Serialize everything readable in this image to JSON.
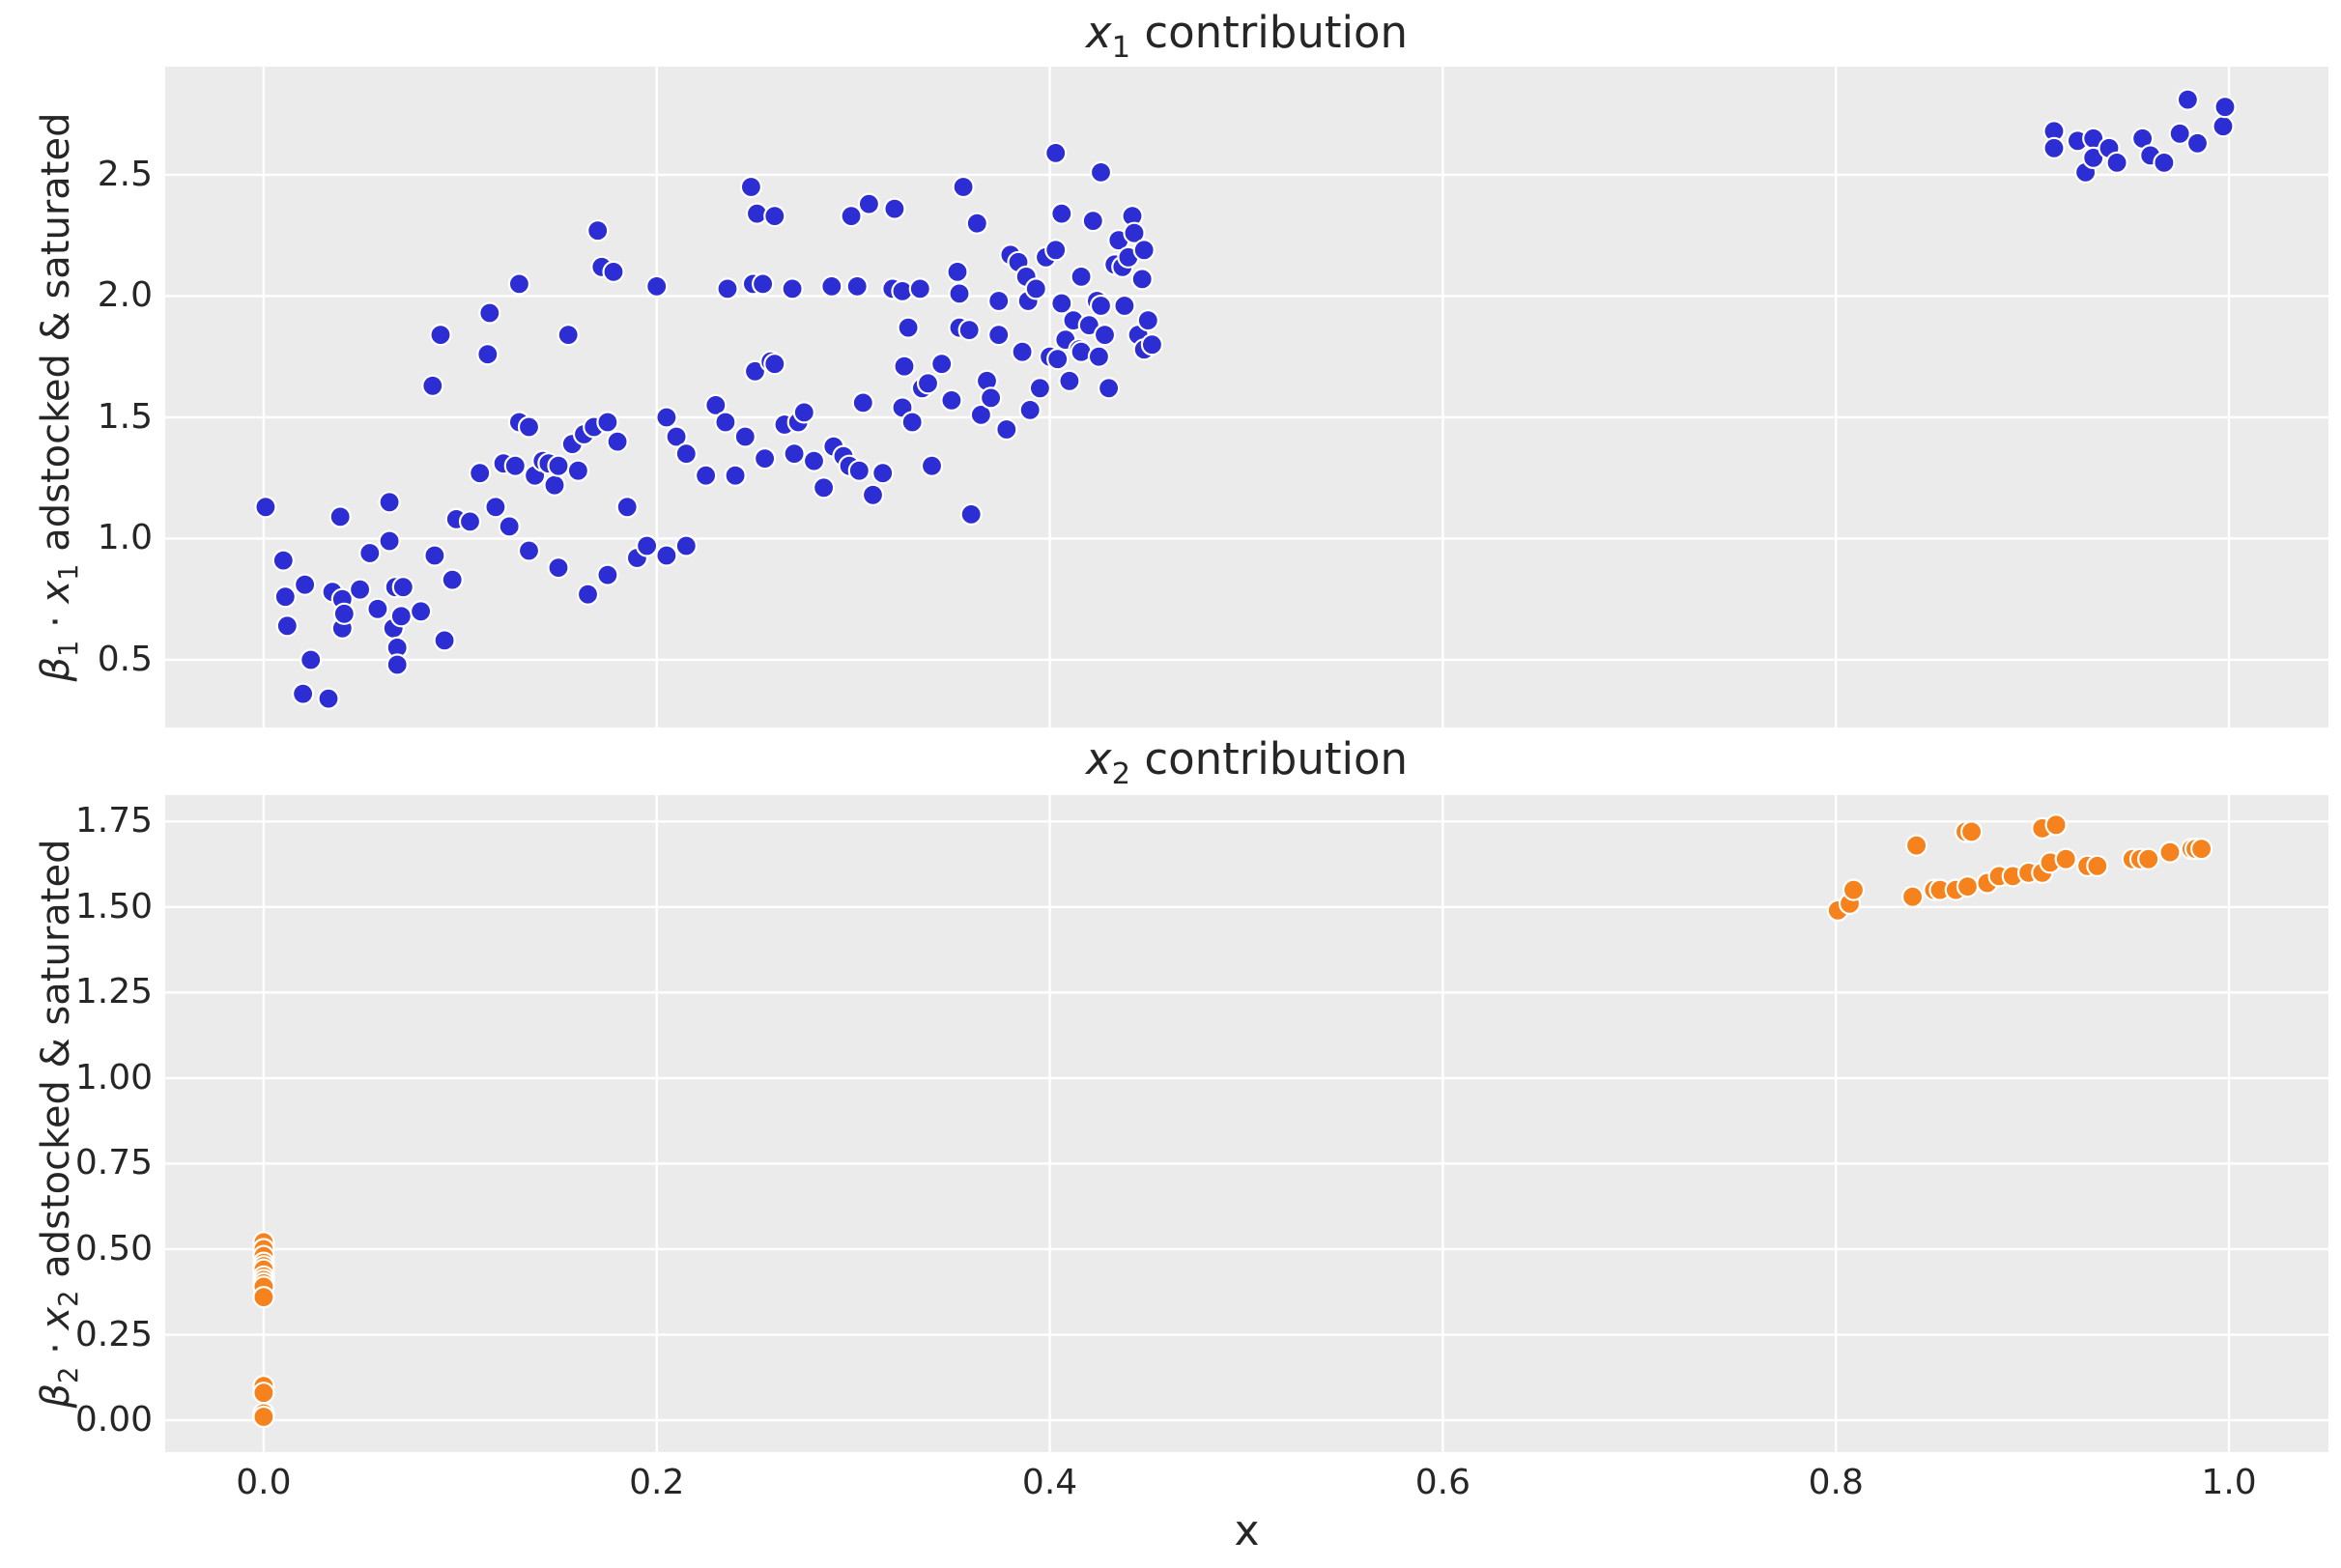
{
  "figure": {
    "background": "#ffffff",
    "panel_background": "#ebebeb",
    "grid_color": "#ffffff",
    "text_color": "#262626"
  },
  "chart_data": [
    {
      "type": "scatter",
      "title": "x1 contribution",
      "title_segments": [
        {
          "t": "var",
          "s": "x"
        },
        {
          "t": "sub",
          "s": "1"
        },
        {
          "t": "text",
          "s": " contribution"
        }
      ],
      "ylabel": "β1 · x1 adstocked & saturated",
      "ylabel_segments": [
        {
          "t": "var",
          "s": "β"
        },
        {
          "t": "sub",
          "s": "1"
        },
        {
          "t": "text",
          "s": " · "
        },
        {
          "t": "var",
          "s": "x"
        },
        {
          "t": "sub",
          "s": "1"
        },
        {
          "t": "text",
          "s": " adstocked & saturated"
        }
      ],
      "xlabel": "",
      "grid": true,
      "legend": null,
      "xlim": [
        -0.0501,
        1.0506
      ],
      "ylim": [
        0.221,
        2.946
      ],
      "xticks": {
        "values": [
          0.0,
          0.2,
          0.4,
          0.6,
          0.8,
          1.0
        ],
        "labels": []
      },
      "yticks": {
        "values": [
          0.5,
          1.0,
          1.5,
          2.0,
          2.5
        ],
        "labels": [
          "0.5",
          "1.0",
          "1.5",
          "2.0",
          "2.5"
        ]
      },
      "series": [
        {
          "name": "x1",
          "color": "#2d2dd4",
          "marker_edge": "#ffffff",
          "points": [
            [
              0.001,
              1.13
            ],
            [
              0.01,
              0.91
            ],
            [
              0.011,
              0.76
            ],
            [
              0.012,
              0.64
            ],
            [
              0.02,
              0.36
            ],
            [
              0.021,
              0.81
            ],
            [
              0.024,
              0.5
            ],
            [
              0.033,
              0.34
            ],
            [
              0.035,
              0.78
            ],
            [
              0.039,
              1.09
            ],
            [
              0.04,
              0.75
            ],
            [
              0.04,
              0.63
            ],
            [
              0.041,
              0.69
            ],
            [
              0.049,
              0.79
            ],
            [
              0.054,
              0.94
            ],
            [
              0.058,
              0.71
            ],
            [
              0.064,
              1.15
            ],
            [
              0.064,
              0.99
            ],
            [
              0.066,
              0.63
            ],
            [
              0.067,
              0.8
            ],
            [
              0.068,
              0.55
            ],
            [
              0.068,
              0.48
            ],
            [
              0.07,
              0.68
            ],
            [
              0.071,
              0.8
            ],
            [
              0.08,
              0.7
            ],
            [
              0.086,
              1.63
            ],
            [
              0.087,
              0.93
            ],
            [
              0.09,
              1.84
            ],
            [
              0.092,
              0.58
            ],
            [
              0.096,
              0.83
            ],
            [
              0.098,
              1.08
            ],
            [
              0.105,
              1.07
            ],
            [
              0.11,
              1.27
            ],
            [
              0.114,
              1.76
            ],
            [
              0.115,
              1.93
            ],
            [
              0.118,
              1.13
            ],
            [
              0.122,
              1.31
            ],
            [
              0.125,
              1.05
            ],
            [
              0.128,
              1.3
            ],
            [
              0.13,
              2.05
            ],
            [
              0.13,
              1.48
            ],
            [
              0.135,
              1.46
            ],
            [
              0.135,
              0.95
            ],
            [
              0.138,
              1.26
            ],
            [
              0.142,
              1.32
            ],
            [
              0.145,
              1.31
            ],
            [
              0.148,
              1.22
            ],
            [
              0.15,
              1.3
            ],
            [
              0.15,
              0.88
            ],
            [
              0.155,
              1.84
            ],
            [
              0.157,
              1.39
            ],
            [
              0.16,
              1.28
            ],
            [
              0.163,
              1.43
            ],
            [
              0.165,
              0.77
            ],
            [
              0.168,
              1.46
            ],
            [
              0.17,
              2.27
            ],
            [
              0.172,
              2.12
            ],
            [
              0.175,
              1.48
            ],
            [
              0.175,
              0.85
            ],
            [
              0.178,
              2.1
            ],
            [
              0.18,
              1.4
            ],
            [
              0.185,
              1.13
            ],
            [
              0.19,
              0.92
            ],
            [
              0.195,
              0.97
            ],
            [
              0.2,
              2.04
            ],
            [
              0.205,
              1.5
            ],
            [
              0.205,
              0.93
            ],
            [
              0.21,
              1.42
            ],
            [
              0.215,
              1.35
            ],
            [
              0.215,
              0.97
            ],
            [
              0.225,
              1.26
            ],
            [
              0.23,
              1.55
            ],
            [
              0.235,
              1.48
            ],
            [
              0.236,
              2.03
            ],
            [
              0.24,
              1.26
            ],
            [
              0.245,
              1.42
            ],
            [
              0.248,
              2.45
            ],
            [
              0.249,
              2.05
            ],
            [
              0.25,
              1.69
            ],
            [
              0.251,
              2.34
            ],
            [
              0.254,
              2.05
            ],
            [
              0.255,
              1.33
            ],
            [
              0.258,
              1.73
            ],
            [
              0.26,
              2.33
            ],
            [
              0.26,
              1.72
            ],
            [
              0.265,
              1.47
            ],
            [
              0.269,
              2.03
            ],
            [
              0.27,
              1.35
            ],
            [
              0.272,
              1.48
            ],
            [
              0.275,
              1.52
            ],
            [
              0.28,
              1.32
            ],
            [
              0.285,
              1.21
            ],
            [
              0.289,
              2.04
            ],
            [
              0.29,
              1.38
            ],
            [
              0.295,
              1.34
            ],
            [
              0.298,
              1.3
            ],
            [
              0.299,
              2.33
            ],
            [
              0.302,
              2.04
            ],
            [
              0.303,
              1.28
            ],
            [
              0.305,
              1.56
            ],
            [
              0.308,
              2.38
            ],
            [
              0.31,
              1.18
            ],
            [
              0.315,
              1.27
            ],
            [
              0.32,
              2.03
            ],
            [
              0.321,
              2.36
            ],
            [
              0.325,
              2.02
            ],
            [
              0.325,
              1.54
            ],
            [
              0.326,
              1.71
            ],
            [
              0.328,
              1.87
            ],
            [
              0.33,
              1.48
            ],
            [
              0.334,
              2.03
            ],
            [
              0.335,
              1.62
            ],
            [
              0.338,
              1.64
            ],
            [
              0.34,
              1.3
            ],
            [
              0.345,
              1.72
            ],
            [
              0.35,
              1.57
            ],
            [
              0.353,
              2.1
            ],
            [
              0.354,
              2.01
            ],
            [
              0.354,
              1.87
            ],
            [
              0.356,
              2.45
            ],
            [
              0.359,
              1.86
            ],
            [
              0.36,
              1.1
            ],
            [
              0.363,
              2.3
            ],
            [
              0.365,
              1.51
            ],
            [
              0.368,
              1.65
            ],
            [
              0.37,
              1.58
            ],
            [
              0.374,
              1.98
            ],
            [
              0.374,
              1.84
            ],
            [
              0.378,
              1.45
            ],
            [
              0.38,
              2.17
            ],
            [
              0.384,
              2.14
            ],
            [
              0.386,
              1.77
            ],
            [
              0.388,
              2.08
            ],
            [
              0.389,
              1.98
            ],
            [
              0.39,
              1.53
            ],
            [
              0.393,
              2.03
            ],
            [
              0.395,
              1.62
            ],
            [
              0.398,
              2.16
            ],
            [
              0.4,
              1.75
            ],
            [
              0.403,
              2.59
            ],
            [
              0.403,
              2.19
            ],
            [
              0.404,
              1.74
            ],
            [
              0.406,
              2.34
            ],
            [
              0.406,
              1.97
            ],
            [
              0.408,
              1.82
            ],
            [
              0.41,
              1.65
            ],
            [
              0.412,
              1.9
            ],
            [
              0.415,
              1.78
            ],
            [
              0.416,
              2.08
            ],
            [
              0.416,
              1.77
            ],
            [
              0.42,
              1.88
            ],
            [
              0.422,
              2.31
            ],
            [
              0.424,
              1.98
            ],
            [
              0.425,
              1.75
            ],
            [
              0.426,
              2.51
            ],
            [
              0.426,
              1.96
            ],
            [
              0.428,
              1.84
            ],
            [
              0.43,
              1.62
            ],
            [
              0.433,
              2.13
            ],
            [
              0.435,
              2.23
            ],
            [
              0.437,
              2.12
            ],
            [
              0.438,
              1.96
            ],
            [
              0.44,
              2.16
            ],
            [
              0.442,
              2.33
            ],
            [
              0.443,
              2.26
            ],
            [
              0.445,
              1.84
            ],
            [
              0.447,
              2.07
            ],
            [
              0.448,
              2.19
            ],
            [
              0.448,
              1.78
            ],
            [
              0.45,
              1.9
            ],
            [
              0.452,
              1.8
            ],
            [
              0.911,
              2.68
            ],
            [
              0.911,
              2.61
            ],
            [
              0.923,
              2.64
            ],
            [
              0.927,
              2.51
            ],
            [
              0.931,
              2.65
            ],
            [
              0.931,
              2.57
            ],
            [
              0.939,
              2.61
            ],
            [
              0.943,
              2.55
            ],
            [
              0.956,
              2.65
            ],
            [
              0.96,
              2.58
            ],
            [
              0.967,
              2.55
            ],
            [
              0.975,
              2.67
            ],
            [
              0.979,
              2.81
            ],
            [
              0.984,
              2.63
            ],
            [
              0.997,
              2.7
            ],
            [
              0.998,
              2.78
            ]
          ]
        }
      ]
    },
    {
      "type": "scatter",
      "title": "x2 contribution",
      "title_segments": [
        {
          "t": "var",
          "s": "x"
        },
        {
          "t": "sub",
          "s": "2"
        },
        {
          "t": "text",
          "s": " contribution"
        }
      ],
      "ylabel": "β2 · x2 adstocked & saturated",
      "ylabel_segments": [
        {
          "t": "var",
          "s": "β"
        },
        {
          "t": "sub",
          "s": "2"
        },
        {
          "t": "text",
          "s": " · "
        },
        {
          "t": "var",
          "s": "x"
        },
        {
          "t": "sub",
          "s": "2"
        },
        {
          "t": "text",
          "s": " adstocked & saturated"
        }
      ],
      "xlabel": "x",
      "grid": true,
      "legend": null,
      "xlim": [
        -0.0501,
        1.0506
      ],
      "ylim": [
        -0.093,
        1.827
      ],
      "xticks": {
        "values": [
          0.0,
          0.2,
          0.4,
          0.6,
          0.8,
          1.0
        ],
        "labels": [
          "0.0",
          "0.2",
          "0.4",
          "0.6",
          "0.8",
          "1.0"
        ]
      },
      "yticks": {
        "values": [
          0.0,
          0.25,
          0.5,
          0.75,
          1.0,
          1.25,
          1.5,
          1.75
        ],
        "labels": [
          "0.00",
          "0.25",
          "0.50",
          "0.75",
          "1.00",
          "1.25",
          "1.50",
          "1.75"
        ]
      },
      "series": [
        {
          "name": "x2",
          "color": "#f5821d",
          "marker_edge": "#ffffff",
          "points": [
            [
              0.0,
              0.52
            ],
            [
              0.0,
              0.5
            ],
            [
              0.0,
              0.48
            ],
            [
              0.0,
              0.46
            ],
            [
              0.0,
              0.45
            ],
            [
              0.0,
              0.44
            ],
            [
              0.0,
              0.42
            ],
            [
              0.0,
              0.41
            ],
            [
              0.0,
              0.4
            ],
            [
              0.0,
              0.39
            ],
            [
              0.0,
              0.36
            ],
            [
              0.0,
              0.1
            ],
            [
              0.0,
              0.08
            ],
            [
              0.0,
              0.02
            ],
            [
              0.0,
              0.01
            ],
            [
              0.801,
              1.49
            ],
            [
              0.807,
              1.51
            ],
            [
              0.809,
              1.55
            ],
            [
              0.839,
              1.53
            ],
            [
              0.841,
              1.68
            ],
            [
              0.85,
              1.55
            ],
            [
              0.853,
              1.55
            ],
            [
              0.861,
              1.55
            ],
            [
              0.866,
              1.72
            ],
            [
              0.869,
              1.72
            ],
            [
              0.867,
              1.56
            ],
            [
              0.877,
              1.57
            ],
            [
              0.883,
              1.59
            ],
            [
              0.89,
              1.59
            ],
            [
              0.898,
              1.6
            ],
            [
              0.905,
              1.73
            ],
            [
              0.912,
              1.74
            ],
            [
              0.905,
              1.6
            ],
            [
              0.909,
              1.63
            ],
            [
              0.917,
              1.64
            ],
            [
              0.928,
              1.62
            ],
            [
              0.933,
              1.62
            ],
            [
              0.951,
              1.64
            ],
            [
              0.955,
              1.64
            ],
            [
              0.959,
              1.64
            ],
            [
              0.97,
              1.66
            ],
            [
              0.981,
              1.67
            ],
            [
              0.983,
              1.67
            ],
            [
              0.986,
              1.67
            ]
          ]
        }
      ]
    }
  ]
}
